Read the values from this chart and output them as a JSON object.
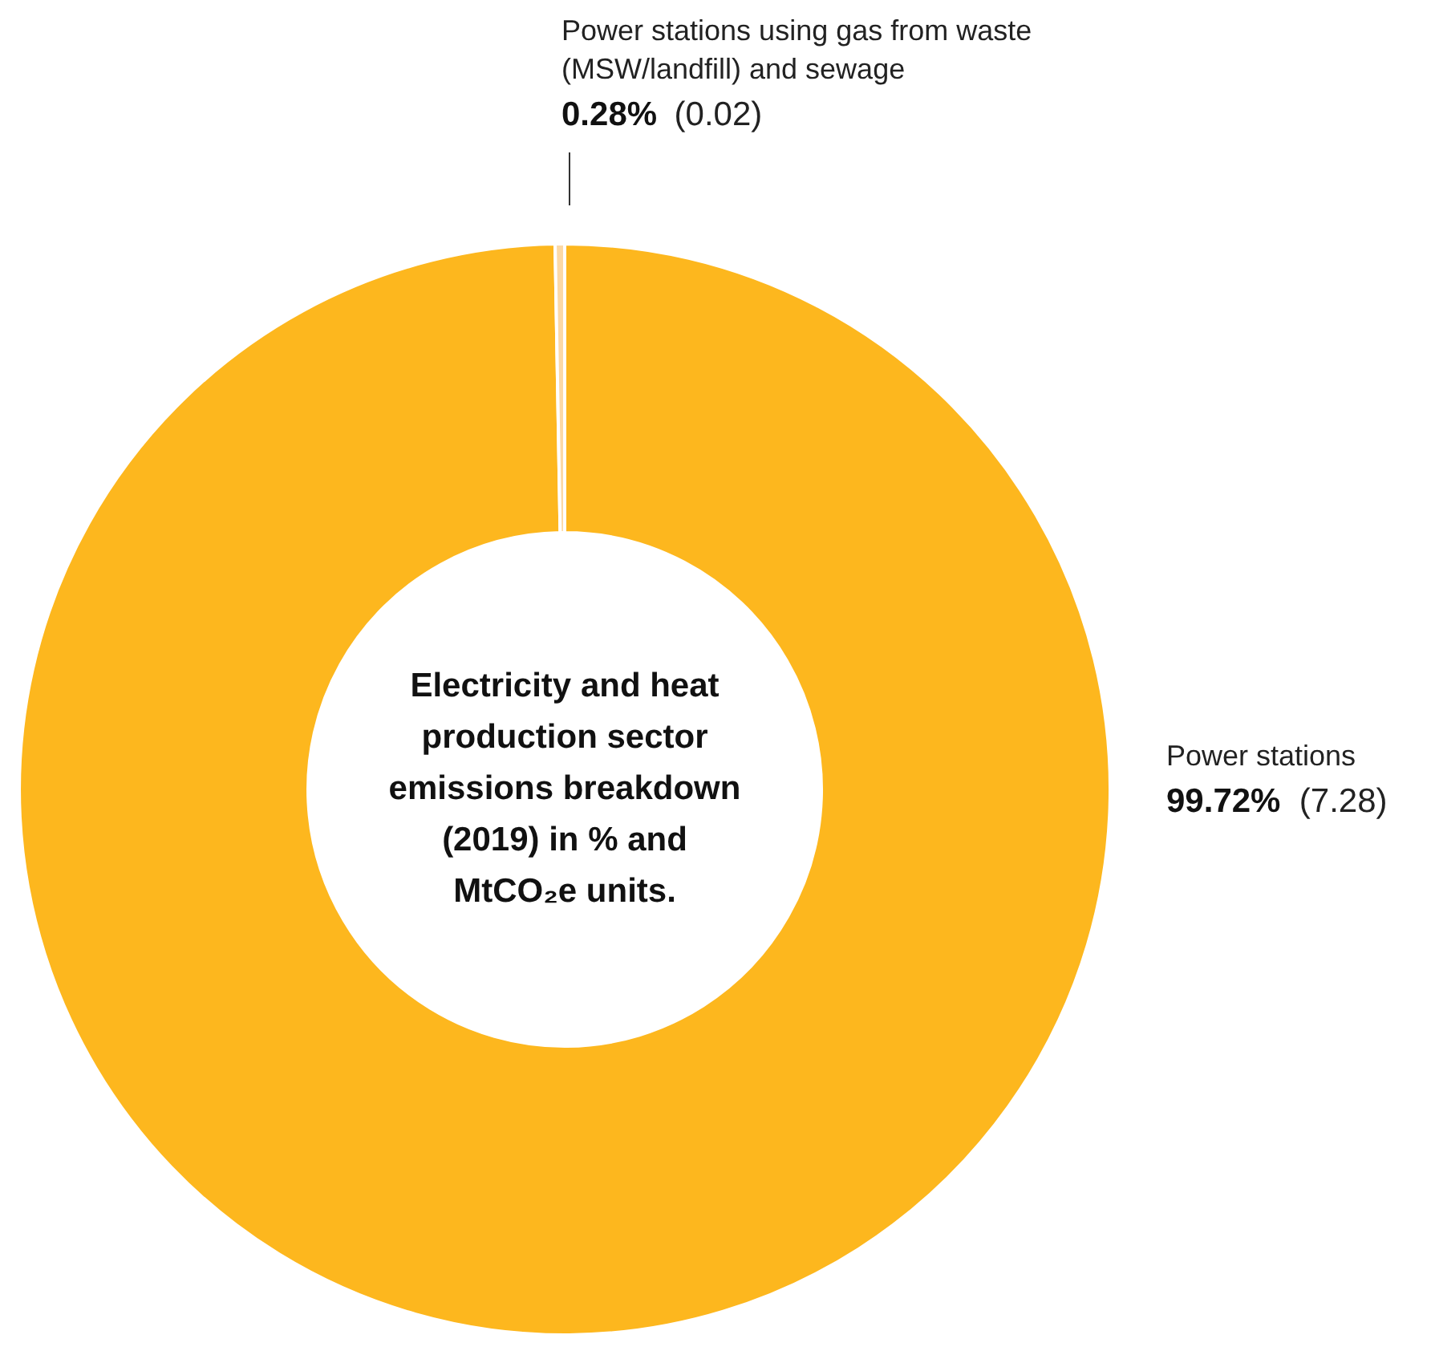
{
  "chart_data": {
    "type": "donut",
    "title": "Electricity and heat production sector emissions breakdown (2019) in % and MtCO₂e units.",
    "categories": [
      "Power stations",
      "Power stations using gas from waste (MSW/landfill) and sewage"
    ],
    "values": [
      99.72,
      0.28
    ],
    "colors": [
      "#fdb71e",
      "#fcd9a6"
    ],
    "value_labels": [
      "99.72% (7.28)",
      "0.28% (0.02)"
    ]
  }
}
